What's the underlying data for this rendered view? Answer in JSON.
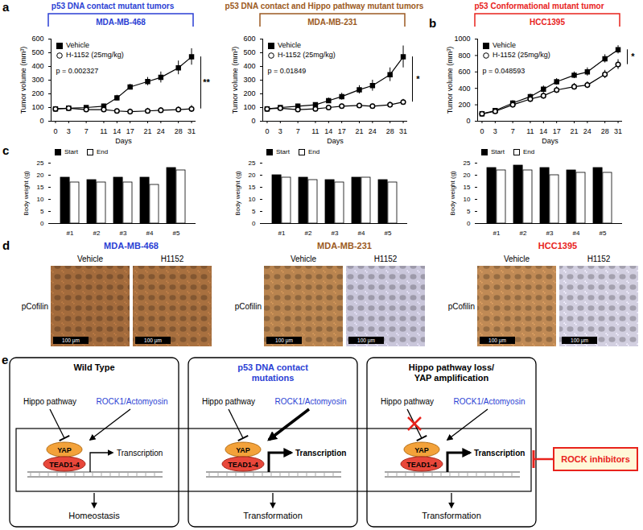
{
  "chart_data": [
    {
      "type": "line",
      "title": "MDA-MB-468",
      "x_label": "Days",
      "y_label": "Tumor volume (mm³)",
      "x": [
        0,
        3,
        7,
        11,
        14,
        17,
        21,
        24,
        28,
        31
      ],
      "xlim": [
        -1,
        32
      ],
      "xticks": [
        0,
        3,
        7,
        11,
        14,
        17,
        21,
        24,
        28,
        31
      ],
      "ylim": [
        0,
        600
      ],
      "yticks": [
        0,
        100,
        200,
        300,
        400,
        500,
        600
      ],
      "legend": "top-left",
      "series": [
        {
          "name": "Vehicle",
          "color": "#000000",
          "marker": "filled-square",
          "values": [
            90,
            95,
            100,
            110,
            170,
            250,
            290,
            320,
            390,
            470
          ],
          "errors": [
            5,
            5,
            10,
            15,
            20,
            20,
            30,
            40,
            50,
            60
          ]
        },
        {
          "name": "H-1152 (25mg/kg)",
          "color": "#000000",
          "marker": "open-circle",
          "values": [
            90,
            95,
            85,
            85,
            75,
            70,
            75,
            80,
            85,
            90
          ],
          "errors": [
            10,
            10,
            10,
            10,
            10,
            20,
            20,
            20,
            20,
            25
          ]
        }
      ],
      "annotations": [
        "p = 0.002327",
        "**"
      ]
    },
    {
      "type": "line",
      "title": "MDA-MB-231",
      "x_label": "Days",
      "y_label": "Tumor volume (mm³)",
      "x": [
        0,
        3,
        7,
        11,
        14,
        17,
        21,
        24,
        28,
        31
      ],
      "xlim": [
        -1,
        32
      ],
      "xticks": [
        0,
        3,
        7,
        11,
        14,
        17,
        21,
        24,
        28,
        31
      ],
      "ylim": [
        0,
        600
      ],
      "yticks": [
        0,
        100,
        200,
        300,
        400,
        500,
        600
      ],
      "legend": "top-left",
      "series": [
        {
          "name": "Vehicle",
          "color": "#000000",
          "marker": "filled-square",
          "values": [
            90,
            100,
            110,
            120,
            150,
            180,
            230,
            260,
            340,
            470
          ],
          "errors": [
            10,
            10,
            15,
            15,
            20,
            25,
            30,
            40,
            50,
            80
          ]
        },
        {
          "name": "H-1152 (25mg/kg)",
          "color": "#000000",
          "marker": "open-circle",
          "values": [
            90,
            95,
            85,
            90,
            100,
            110,
            115,
            110,
            120,
            140
          ],
          "errors": [
            10,
            10,
            10,
            10,
            15,
            15,
            15,
            15,
            20,
            20
          ]
        }
      ],
      "annotations": [
        "p = 0.01849",
        "*"
      ]
    },
    {
      "type": "line",
      "title": "HCC1395",
      "x_label": "Days",
      "y_label": "Tumor volume (mm³)",
      "x": [
        0,
        3,
        7,
        11,
        14,
        17,
        21,
        24,
        28,
        31
      ],
      "xlim": [
        -1,
        32
      ],
      "xticks": [
        0,
        3,
        7,
        11,
        14,
        17,
        21,
        24,
        28,
        31
      ],
      "ylim": [
        0,
        1000
      ],
      "yticks": [
        0,
        200,
        400,
        600,
        800,
        1000
      ],
      "legend": "top-left",
      "series": [
        {
          "name": "Vehicle",
          "color": "#000000",
          "marker": "filled-square",
          "values": [
            90,
            130,
            220,
            300,
            390,
            480,
            560,
            600,
            760,
            870
          ],
          "errors": [
            20,
            20,
            30,
            30,
            40,
            40,
            40,
            50,
            50,
            50
          ]
        },
        {
          "name": "H-1152 (25mg/kg)",
          "color": "#000000",
          "marker": "open-circle",
          "values": [
            90,
            120,
            200,
            270,
            310,
            380,
            420,
            440,
            570,
            690
          ],
          "errors": [
            20,
            30,
            30,
            40,
            40,
            40,
            40,
            40,
            50,
            60
          ]
        }
      ],
      "annotations": [
        "p = 0.048593",
        "*"
      ]
    },
    {
      "type": "bar",
      "y_label": "Body weight (g)",
      "categories": [
        "#1",
        "#2",
        "#3",
        "#4",
        "#5"
      ],
      "ylim": [
        0,
        25
      ],
      "yticks": [
        0,
        5,
        10,
        15,
        20,
        25
      ],
      "legend": "top-left",
      "series": [
        {
          "name": "Start",
          "color": "#000000",
          "values": [
            19,
            18,
            19,
            19,
            23
          ]
        },
        {
          "name": "End",
          "color": "#ffffff",
          "values": [
            17,
            17,
            17,
            16,
            22
          ]
        }
      ]
    },
    {
      "type": "bar",
      "y_label": "Body weight (g)",
      "categories": [
        "#1",
        "#2",
        "#3",
        "#4",
        "#5"
      ],
      "ylim": [
        0,
        25
      ],
      "yticks": [
        0,
        5,
        10,
        15,
        20,
        25
      ],
      "legend": "top-left",
      "series": [
        {
          "name": "Start",
          "color": "#000000",
          "values": [
            20,
            19,
            18,
            19,
            18
          ]
        },
        {
          "name": "End",
          "color": "#ffffff",
          "values": [
            19,
            18,
            17,
            19,
            17
          ]
        }
      ]
    },
    {
      "type": "bar",
      "y_label": "Body weight (g)",
      "categories": [
        "#1",
        "#2",
        "#3",
        "#4",
        "#5"
      ],
      "ylim": [
        0,
        25
      ],
      "yticks": [
        0,
        5,
        10,
        15,
        20,
        25
      ],
      "legend": "top-left",
      "series": [
        {
          "name": "Start",
          "color": "#000000",
          "values": [
            23,
            24,
            23,
            22,
            23
          ]
        },
        {
          "name": "End",
          "color": "#ffffff",
          "values": [
            22,
            22,
            20,
            21,
            21
          ]
        }
      ]
    }
  ],
  "panel_labels": [
    "a",
    "b",
    "c",
    "d",
    "e"
  ],
  "headers": [
    {
      "text": "p53 DNA contact mutant tumors",
      "color": "#2b3fd4"
    },
    {
      "text": "p53 DNA contact and Hippo pathway mutant tumors",
      "color": "#9c5a22"
    },
    {
      "text": "p53 Conformational mutant tumor",
      "color": "#e8231c"
    }
  ],
  "ihc": {
    "stain": "pCofilin",
    "scale_bar": "100 μm",
    "groups": [
      {
        "title": "MDA-MB-468",
        "color": "#2b3fd4",
        "images": [
          {
            "label": "Vehicle",
            "color": "#a36b3c"
          },
          {
            "label": "H1152",
            "color": "#a8703f"
          }
        ]
      },
      {
        "title": "MDA-MB-231",
        "color": "#9c5a22",
        "images": [
          {
            "label": "Vehicle",
            "color": "#b9844f"
          },
          {
            "label": "H1152",
            "color": "#c9c6da"
          }
        ]
      },
      {
        "title": "HCC1395",
        "color": "#e8231c",
        "images": [
          {
            "label": "Vehicle",
            "color": "#c08a55"
          },
          {
            "label": "H1152",
            "color": "#d2cfe0"
          }
        ]
      }
    ]
  },
  "diagram": {
    "panels": [
      {
        "title": [
          "Wild Type"
        ],
        "title_color": "#000000",
        "regulators": [
          "Hippo pathway",
          "ROCK1/Actomyosin"
        ],
        "regulator_colors": [
          "#000000",
          "#2b3fd4"
        ],
        "complex": [
          "YAP",
          "TEAD1-4"
        ],
        "output": "Transcription",
        "outcome": "Homeostasis"
      },
      {
        "title": [
          "p53 DNA contact",
          "mutations"
        ],
        "title_color": "#2b3fd4",
        "regulators": [
          "Hippo pathway",
          "ROCK1/Actomyosin"
        ],
        "regulator_colors": [
          "#000000",
          "#2b3fd4"
        ],
        "complex": [
          "YAP",
          "TEAD1-4"
        ],
        "output": "Transcription",
        "outcome": "Transformation"
      },
      {
        "title": [
          "Hippo pathway loss/",
          "YAP amplification"
        ],
        "title_color": "#000000",
        "regulators": [
          "Hippo pathway",
          "ROCK1/Actomyosin"
        ],
        "regulator_colors": [
          "#000000",
          "#2b3fd4"
        ],
        "complex": [
          "YAP",
          "TEAD1-4"
        ],
        "output": "Transcription",
        "outcome": "Transformation"
      }
    ],
    "inhibitor": "ROCK inhibitors",
    "inhibitor_color": "#e8231c"
  }
}
